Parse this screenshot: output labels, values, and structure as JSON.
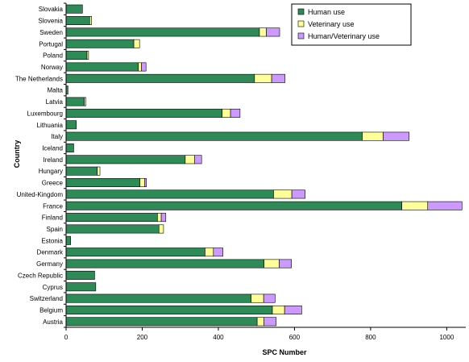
{
  "chart_data": {
    "type": "bar",
    "orientation": "horizontal",
    "stacked": true,
    "title": "",
    "xlabel": "SPC Number",
    "ylabel": "Country",
    "xlim": [
      0,
      1050
    ],
    "xticks": [
      0,
      200,
      400,
      600,
      800,
      1000
    ],
    "grid": false,
    "legend_position": "top-right",
    "categories": [
      "Slovakia",
      "Slovenia",
      "Sweden",
      "Portugal",
      "Poland",
      "Norway",
      "The Netherlands",
      "Malta",
      "Latvia",
      "Luxembourg",
      "Lithuania",
      "Italy",
      "Iceland",
      "Ireland",
      "Hungary",
      "Greece",
      "United-Kingdom",
      "France",
      "Finland",
      "Spain",
      "Estonia",
      "Denmark",
      "Germany",
      "Czech Republic",
      "Cyprus",
      "Switzerland",
      "Belgium",
      "Austria"
    ],
    "series": [
      {
        "name": "Human use",
        "color": "#2e8b57",
        "values": [
          43,
          62,
          508,
          178,
          55,
          190,
          495,
          5,
          48,
          410,
          27,
          778,
          20,
          313,
          82,
          194,
          545,
          882,
          240,
          244,
          12,
          365,
          520,
          75,
          78,
          486,
          542,
          502
        ]
      },
      {
        "name": "Veterinary use",
        "color": "#ffff99",
        "values": [
          0,
          5,
          18,
          15,
          4,
          8,
          45,
          0,
          4,
          22,
          0,
          55,
          0,
          25,
          7,
          12,
          48,
          68,
          10,
          12,
          0,
          22,
          40,
          0,
          0,
          33,
          32,
          18
        ]
      },
      {
        "name": "Human/Veterinary use",
        "color": "#cc99ff",
        "values": [
          0,
          0,
          35,
          0,
          0,
          12,
          35,
          0,
          0,
          25,
          0,
          68,
          0,
          18,
          0,
          5,
          35,
          90,
          12,
          0,
          0,
          25,
          32,
          0,
          0,
          30,
          45,
          32
        ]
      }
    ]
  }
}
